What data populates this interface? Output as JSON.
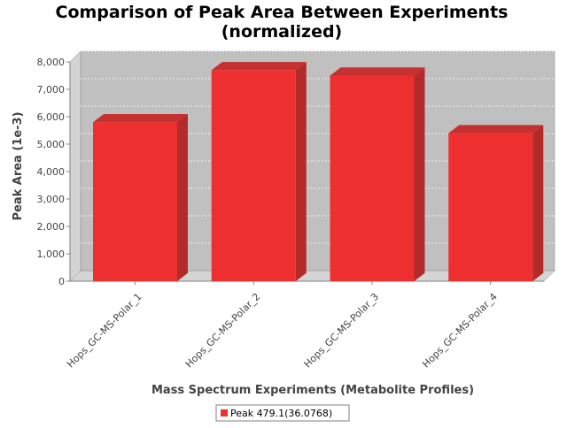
{
  "chart_data": {
    "type": "bar",
    "title_line1": "Comparison of Peak Area Between Experiments",
    "title_line2": "(normalized)",
    "xlabel": "Mass Spectrum Experiments (Metabolite Profiles)",
    "ylabel": "Peak Area (1e-3)",
    "categories": [
      "Hops_GC-MS-Polar_1",
      "Hops_GC-MS-Polar_2",
      "Hops_GC-MS-Polar_3",
      "Hops_GC-MS-Polar_4"
    ],
    "series": [
      {
        "name": "Peak 479.1(36.0768)",
        "values": [
          5800,
          7700,
          7500,
          5400
        ],
        "color": "#ee2f2f"
      }
    ],
    "ylim": [
      0,
      8000
    ],
    "yticks": [
      0,
      1000,
      2000,
      3000,
      4000,
      5000,
      6000,
      7000,
      8000
    ],
    "ytick_labels": [
      "0",
      "1,000",
      "2,000",
      "3,000",
      "4,000",
      "5,000",
      "6,000",
      "7,000",
      "8,000"
    ],
    "grid": true,
    "legend_position": "bottom-center",
    "plot_background": "#c0c0c0",
    "floor_color": "#d4d4d4"
  }
}
